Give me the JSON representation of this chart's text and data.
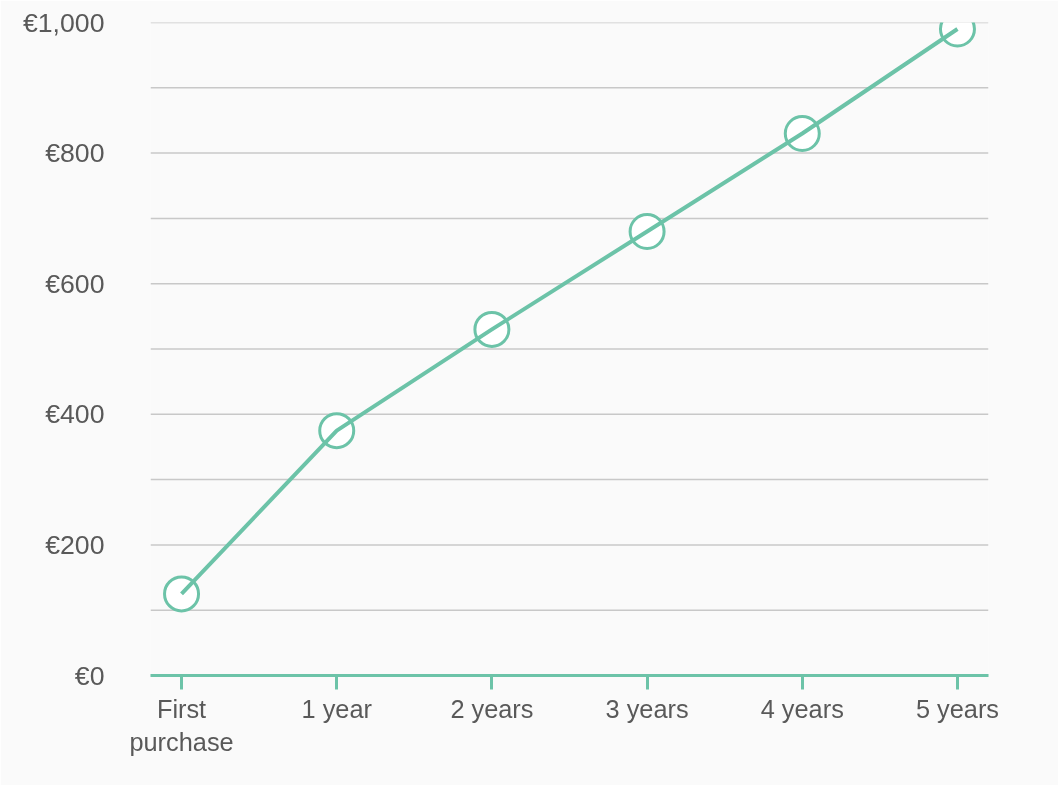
{
  "chart_data": {
    "type": "line",
    "categories": [
      "First purchase",
      "1 year",
      "2 years",
      "3 years",
      "4 years",
      "5 years"
    ],
    "series": [
      {
        "color": "#6cc3a8",
        "values": [
          125,
          375,
          530,
          680,
          830,
          990
        ]
      }
    ],
    "ylim": [
      0,
      1000
    ],
    "yticks": [
      {
        "value": 0,
        "label": "€0"
      },
      {
        "value": 100,
        "label": null
      },
      {
        "value": 200,
        "label": "€200"
      },
      {
        "value": 300,
        "label": null
      },
      {
        "value": 400,
        "label": "€400"
      },
      {
        "value": 500,
        "label": null
      },
      {
        "value": 600,
        "label": "€600"
      },
      {
        "value": 700,
        "label": null
      },
      {
        "value": 800,
        "label": "€800"
      },
      {
        "value": 900,
        "label": null
      },
      {
        "value": 1000,
        "label": "€1,000"
      }
    ],
    "grid": "y",
    "marker": "circle",
    "line_style": "solid"
  }
}
